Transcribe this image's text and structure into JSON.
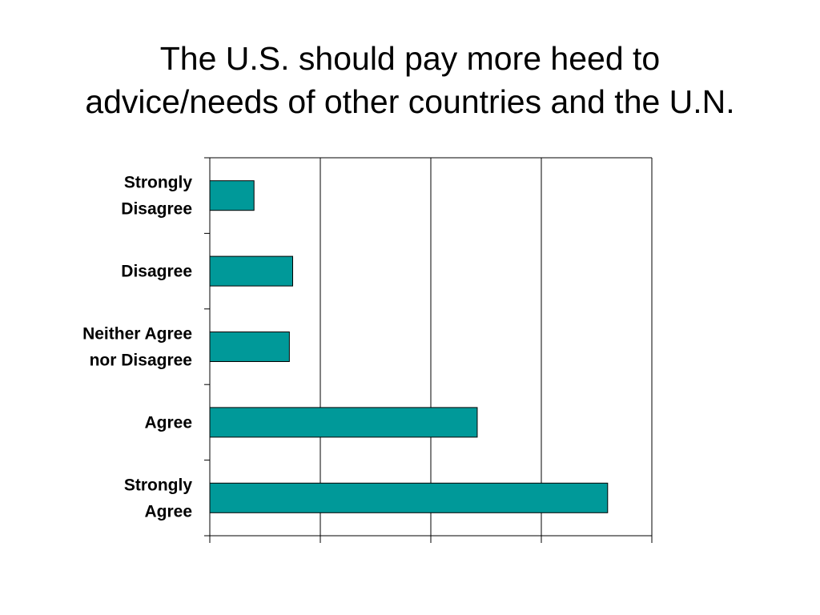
{
  "title": {
    "line1": "The U.S. should pay more heed to",
    "line2": "advice/needs of other countries and the U.N."
  },
  "chart_data": {
    "type": "bar",
    "orientation": "horizontal",
    "categories": [
      [
        "Strongly",
        "Disagree"
      ],
      [
        "Disagree"
      ],
      [
        "Neither Agree",
        "nor Disagree"
      ],
      [
        "Agree"
      ],
      [
        "Strongly",
        "Agree"
      ]
    ],
    "values": [
      4,
      7.5,
      7.2,
      24.2,
      36
    ],
    "xlim": [
      0,
      40
    ],
    "x_ticks": [
      0,
      10,
      20,
      30,
      40
    ],
    "tick_labels_shown": false,
    "grid": "vertical",
    "bar_color": "#009999",
    "legend": "none"
  }
}
